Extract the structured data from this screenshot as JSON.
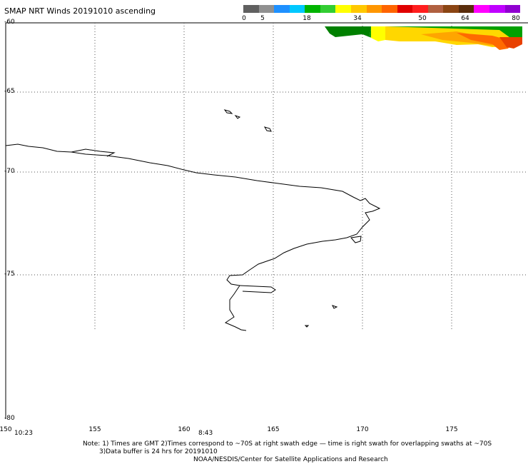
{
  "title": "SMAP NRT Winds 20191010 ascending",
  "legend": {
    "ticks": [
      "0",
      "5",
      "18",
      "34",
      "50",
      "64",
      "80"
    ],
    "colors": [
      "#606060",
      "#909090",
      "#1e90ff",
      "#00c8ff",
      "#00b400",
      "#32cd32",
      "#ffff00",
      "#ffc800",
      "#ff9600",
      "#ff6400",
      "#e00000",
      "#ff1e1e",
      "#b06040",
      "#8b4513",
      "#5a2d0c",
      "#ff00ff",
      "#c000ff",
      "#9000d0"
    ]
  },
  "lat_labels": [
    "-60",
    "-65",
    "-70",
    "-75",
    "-80"
  ],
  "lon_labels": [
    "150",
    "155",
    "160",
    "165",
    "170",
    "175"
  ],
  "times": [
    "10:23",
    "8:43"
  ],
  "notes": [
    "Note: 1) Times are GMT 2)Times correspond to ~70S at right swath edge — time is right swath for overlapping swaths at ~70S",
    "3)Data buffer is 24 hrs for 20191010",
    "NOAA/NESDIS/Center for Satellite Applications and Research"
  ]
}
